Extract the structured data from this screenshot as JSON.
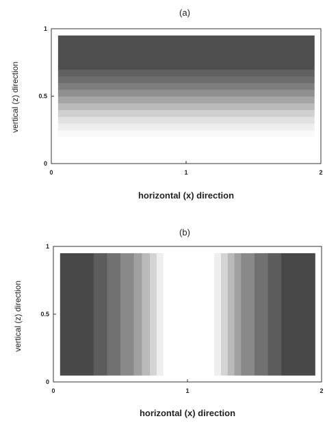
{
  "chart_data": [
    {
      "type": "heatmap",
      "title": "(a)",
      "xlabel": "horizontal (x) direction",
      "ylabel": "vertical (z) direction",
      "xlim": [
        0,
        2
      ],
      "ylim": [
        0,
        1
      ],
      "x_ticks": [
        "0",
        "1",
        "2"
      ],
      "y_ticks": [
        "0",
        "0.5",
        "1"
      ],
      "field_extent": {
        "x": [
          0.05,
          1.95
        ],
        "z": [
          0.2,
          0.95
        ]
      },
      "gradient": "vertical",
      "bands": [
        {
          "from": 0.2,
          "to": 0.25,
          "intensity": 0.03
        },
        {
          "from": 0.25,
          "to": 0.3,
          "intensity": 0.08
        },
        {
          "from": 0.3,
          "to": 0.35,
          "intensity": 0.14
        },
        {
          "from": 0.35,
          "to": 0.4,
          "intensity": 0.22
        },
        {
          "from": 0.4,
          "to": 0.45,
          "intensity": 0.32
        },
        {
          "from": 0.45,
          "to": 0.5,
          "intensity": 0.42
        },
        {
          "from": 0.5,
          "to": 0.55,
          "intensity": 0.52
        },
        {
          "from": 0.55,
          "to": 0.6,
          "intensity": 0.6
        },
        {
          "from": 0.6,
          "to": 0.65,
          "intensity": 0.68
        },
        {
          "from": 0.65,
          "to": 0.7,
          "intensity": 0.74
        },
        {
          "from": 0.7,
          "to": 0.95,
          "intensity": 0.82
        }
      ]
    },
    {
      "type": "heatmap",
      "title": "(b)",
      "xlabel": "horizontal (x) direction",
      "ylabel": "vertical (z) direction",
      "xlim": [
        0,
        2
      ],
      "ylim": [
        0,
        1
      ],
      "x_ticks": [
        "0",
        "1",
        "2"
      ],
      "y_ticks": [
        "0",
        "0.5",
        "1"
      ],
      "field_extent": {
        "x": [
          0.05,
          1.95
        ],
        "z": [
          0.05,
          0.95
        ]
      },
      "gradient": "horizontal",
      "bands": [
        {
          "from": 0.05,
          "to": 0.3,
          "intensity": 0.85
        },
        {
          "from": 0.3,
          "to": 0.4,
          "intensity": 0.76
        },
        {
          "from": 0.4,
          "to": 0.5,
          "intensity": 0.66
        },
        {
          "from": 0.5,
          "to": 0.6,
          "intensity": 0.55
        },
        {
          "from": 0.6,
          "to": 0.66,
          "intensity": 0.44
        },
        {
          "from": 0.66,
          "to": 0.72,
          "intensity": 0.32
        },
        {
          "from": 0.72,
          "to": 0.77,
          "intensity": 0.2
        },
        {
          "from": 0.77,
          "to": 0.82,
          "intensity": 0.08
        },
        {
          "from": 0.82,
          "to": 1.2,
          "intensity": 0.0
        },
        {
          "from": 1.2,
          "to": 1.25,
          "intensity": 0.08
        },
        {
          "from": 1.25,
          "to": 1.3,
          "intensity": 0.2
        },
        {
          "from": 1.3,
          "to": 1.35,
          "intensity": 0.32
        },
        {
          "from": 1.35,
          "to": 1.4,
          "intensity": 0.44
        },
        {
          "from": 1.4,
          "to": 1.5,
          "intensity": 0.55
        },
        {
          "from": 1.5,
          "to": 1.6,
          "intensity": 0.66
        },
        {
          "from": 1.6,
          "to": 1.7,
          "intensity": 0.76
        },
        {
          "from": 1.7,
          "to": 1.95,
          "intensity": 0.85
        }
      ]
    }
  ]
}
